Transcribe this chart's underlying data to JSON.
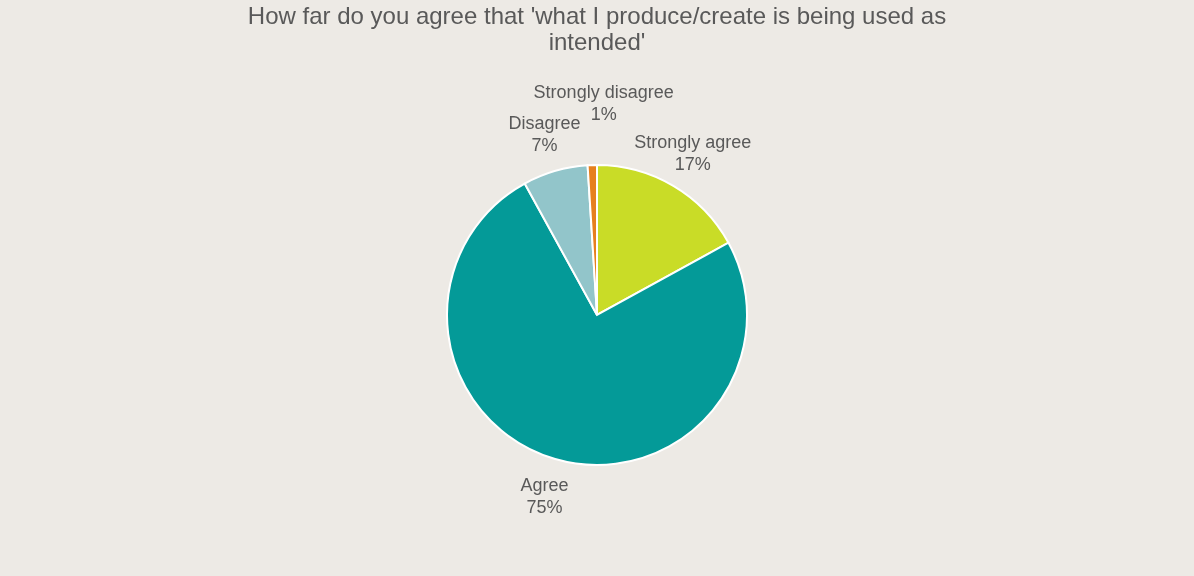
{
  "chart_data": {
    "type": "pie",
    "title": "How far do you agree that 'what I produce/create is being used as intended'",
    "categories": [
      "Strongly agree",
      "Agree",
      "Disagree",
      "Strongly disagree"
    ],
    "values": [
      17,
      75,
      7,
      1
    ],
    "colors": [
      "#c9dc27",
      "#049a98",
      "#92c5ca",
      "#e6801e"
    ],
    "value_labels": [
      "17%",
      "75%",
      "7%",
      "1%"
    ],
    "legend": false
  }
}
